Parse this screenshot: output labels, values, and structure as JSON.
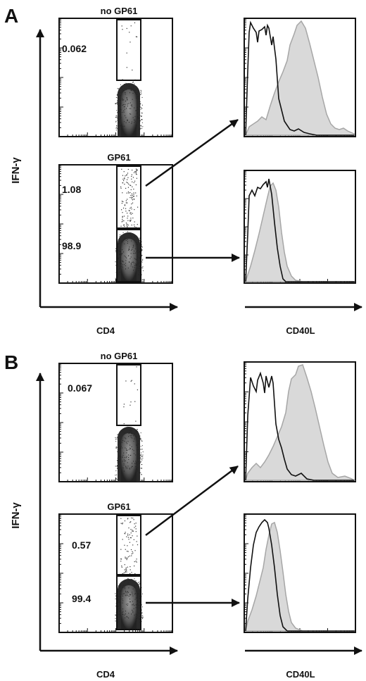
{
  "panels": [
    {
      "letter": "A",
      "y_axis_label": "IFN-γ",
      "x_axis_label": "CD4",
      "hist_axis_label": "CD40L",
      "plots": [
        {
          "title": "no GP61",
          "gates": [
            "0.062"
          ]
        },
        {
          "title": "GP61",
          "gates": [
            "1.08",
            "98.9"
          ]
        }
      ]
    },
    {
      "letter": "B",
      "y_axis_label": "IFN-γ",
      "x_axis_label": "CD4",
      "hist_axis_label": "CD40L",
      "plots": [
        {
          "title": "no GP61",
          "gates": [
            "0.067"
          ]
        },
        {
          "title": "GP61",
          "gates": [
            "0.57",
            "99.4"
          ]
        }
      ]
    }
  ],
  "colors": {
    "ink": "#111111",
    "filled_histogram": "#d9d9d9",
    "filled_histogram_edge": "#a6a6a6",
    "open_histogram": "#111111",
    "population": "#6e6e6e"
  }
}
